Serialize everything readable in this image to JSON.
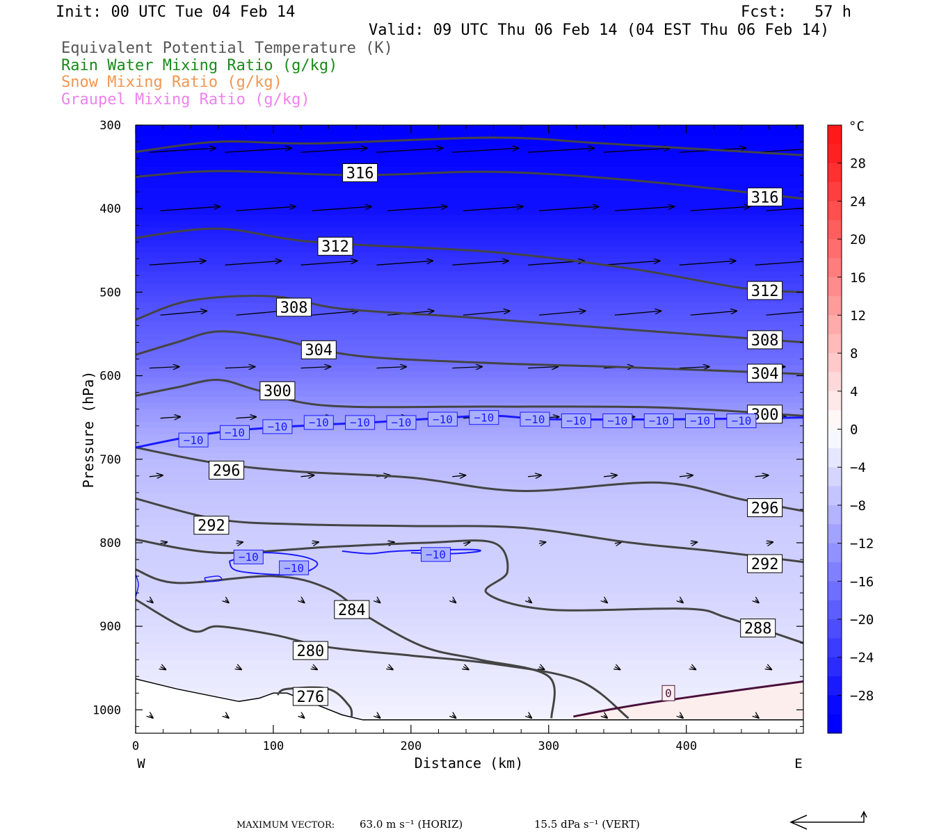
{
  "header": {
    "init": "Init: 00 UTC Tue 04 Feb 14",
    "fcst": "Fcst:   57 h",
    "valid": "Valid: 09 UTC Thu 06 Feb 14 (04 EST Thu 06 Feb 14)"
  },
  "legend": [
    {
      "label": "Equivalent Potential Temperature (K)",
      "color": "#555555"
    },
    {
      "label": "Rain Water Mixing Ratio (g/kg)",
      "color": "#1a8a1a"
    },
    {
      "label": "Snow Mixing Ratio (g/kg)",
      "color": "#f39650"
    },
    {
      "label": "Graupel Mixing Ratio (g/kg)",
      "color": "#ee82ee"
    }
  ],
  "footer": {
    "max_vector_label": "MAXIMUM VECTOR:",
    "horiz": "63.0 m s⁻¹ (HORIZ)",
    "vert": "15.5 dPa s⁻¹ (VERT)"
  },
  "chart_data": {
    "type": "heatmap",
    "xlabel": "Distance (km)",
    "ylabel": "Pressure (hPa)",
    "x_ticks": [
      0,
      100,
      200,
      300,
      400
    ],
    "xlim": [
      0,
      485
    ],
    "y_ticks": [
      300,
      400,
      500,
      600,
      700,
      800,
      900,
      1000
    ],
    "ylim": [
      1028,
      300
    ],
    "x_end_labels": {
      "left": "W",
      "right": "E"
    },
    "colorbar": {
      "unit": "°C",
      "tick_labels": [
        "28",
        "24",
        "20",
        "16",
        "12",
        "8",
        "4",
        "0",
        "−4",
        "−8",
        "−12",
        "−16",
        "−20",
        "−24",
        "−28"
      ],
      "tick_values": [
        28,
        24,
        20,
        16,
        12,
        8,
        4,
        0,
        -4,
        -8,
        -12,
        -16,
        -20,
        -24,
        -28
      ],
      "range": [
        -32,
        32
      ],
      "step": 2
    },
    "theta_e": [
      {
        "value": 316,
        "points": [
          [
            0,
            332
          ],
          [
            60,
            320
          ],
          [
            130,
            322
          ],
          [
            260,
            315
          ],
          [
            340,
            322
          ],
          [
            485,
            336
          ]
        ]
      },
      {
        "value": 316,
        "points": [
          [
            0,
            362
          ],
          [
            60,
            355
          ],
          [
            160,
            360
          ],
          [
            260,
            356
          ],
          [
            360,
            366
          ],
          [
            485,
            388
          ]
        ]
      },
      {
        "value": 312,
        "points": [
          [
            0,
            435
          ],
          [
            60,
            424
          ],
          [
            130,
            440
          ],
          [
            260,
            452
          ],
          [
            360,
            472
          ],
          [
            440,
            495
          ],
          [
            485,
            500
          ]
        ]
      },
      {
        "value": 308,
        "points": [
          [
            0,
            533
          ],
          [
            40,
            510
          ],
          [
            100,
            505
          ],
          [
            150,
            520
          ],
          [
            240,
            530
          ],
          [
            360,
            545
          ],
          [
            485,
            560
          ]
        ]
      },
      {
        "value": 304,
        "points": [
          [
            0,
            575
          ],
          [
            30,
            560
          ],
          [
            60,
            547
          ],
          [
            100,
            555
          ],
          [
            160,
            576
          ],
          [
            260,
            585
          ],
          [
            360,
            590
          ],
          [
            485,
            598
          ]
        ]
      },
      {
        "value": 300,
        "points": [
          [
            0,
            624
          ],
          [
            30,
            614
          ],
          [
            60,
            605
          ],
          [
            90,
            618
          ],
          [
            140,
            636
          ],
          [
            260,
            637
          ],
          [
            380,
            638
          ],
          [
            485,
            648
          ]
        ]
      },
      {
        "value": 296,
        "points": [
          [
            0,
            686
          ],
          [
            60,
            705
          ],
          [
            120,
            715
          ],
          [
            200,
            722
          ],
          [
            280,
            738
          ],
          [
            380,
            728
          ],
          [
            440,
            748
          ],
          [
            485,
            762
          ]
        ]
      },
      {
        "value": 292,
        "points": [
          [
            0,
            747
          ],
          [
            60,
            772
          ],
          [
            120,
            778
          ],
          [
            200,
            780
          ],
          [
            280,
            782
          ],
          [
            360,
            800
          ],
          [
            420,
            810
          ],
          [
            485,
            823
          ]
        ]
      },
      {
        "value": 288,
        "points": [
          [
            0,
            796
          ],
          [
            60,
            812
          ],
          [
            140,
            805
          ],
          [
            210,
            800
          ],
          [
            260,
            800
          ],
          [
            270,
            835
          ],
          [
            255,
            860
          ],
          [
            300,
            880
          ],
          [
            400,
            879
          ],
          [
            430,
            890
          ],
          [
            485,
            920
          ]
        ]
      },
      {
        "value": 284,
        "points": [
          [
            0,
            832
          ],
          [
            30,
            848
          ],
          [
            100,
            840
          ],
          [
            140,
            855
          ],
          [
            170,
            890
          ],
          [
            210,
            925
          ],
          [
            250,
            940
          ],
          [
            300,
            960
          ],
          [
            302,
            1010
          ]
        ]
      },
      {
        "value": 280,
        "points": [
          [
            0,
            868
          ],
          [
            40,
            905
          ],
          [
            60,
            900
          ],
          [
            100,
            910
          ],
          [
            140,
            925
          ],
          [
            200,
            935
          ],
          [
            260,
            945
          ],
          [
            322,
            965
          ],
          [
            358,
            1010
          ]
        ]
      },
      {
        "value": 276,
        "points": [
          [
            103,
            982
          ],
          [
            110,
            975
          ],
          [
            140,
            975
          ],
          [
            155,
            995
          ],
          [
            157,
            1008
          ]
        ]
      }
    ],
    "isotherm_minus10": [
      [
        0,
        686
      ],
      [
        50,
        670
      ],
      [
        100,
        662
      ],
      [
        180,
        655
      ],
      [
        255,
        648
      ],
      [
        300,
        652
      ],
      [
        400,
        652
      ],
      [
        485,
        650
      ]
    ],
    "isotherm_zero": [
      [
        318,
        1008
      ],
      [
        350,
        998
      ],
      [
        380,
        990
      ],
      [
        440,
        976
      ],
      [
        485,
        966
      ]
    ],
    "theta_e_labels": [
      {
        "text": "316",
        "x": 163,
        "p": 357
      },
      {
        "text": "316",
        "x": 457,
        "p": 386
      },
      {
        "text": "312",
        "x": 145,
        "p": 445
      },
      {
        "text": "312",
        "x": 457,
        "p": 498
      },
      {
        "text": "308",
        "x": 115,
        "p": 518
      },
      {
        "text": "308",
        "x": 457,
        "p": 557
      },
      {
        "text": "304",
        "x": 133,
        "p": 569
      },
      {
        "text": "304",
        "x": 457,
        "p": 597
      },
      {
        "text": "300",
        "x": 103,
        "p": 618
      },
      {
        "text": "300",
        "x": 457,
        "p": 646
      },
      {
        "text": "296",
        "x": 66,
        "p": 713
      },
      {
        "text": "296",
        "x": 457,
        "p": 758
      },
      {
        "text": "292",
        "x": 55,
        "p": 779
      },
      {
        "text": "292",
        "x": 457,
        "p": 825
      },
      {
        "text": "288",
        "x": 452,
        "p": 902
      },
      {
        "text": "284",
        "x": 157,
        "p": 880
      },
      {
        "text": "280",
        "x": 127,
        "p": 929
      },
      {
        "text": "276",
        "x": 127,
        "p": 984
      }
    ],
    "minus10_labels": [
      {
        "text": "−10",
        "x": 42,
        "p": 677
      },
      {
        "text": "−10",
        "x": 72,
        "p": 668
      },
      {
        "text": "−10",
        "x": 103,
        "p": 661
      },
      {
        "text": "−10",
        "x": 133,
        "p": 656
      },
      {
        "text": "−10",
        "x": 163,
        "p": 656
      },
      {
        "text": "−10",
        "x": 193,
        "p": 656
      },
      {
        "text": "−10",
        "x": 223,
        "p": 652
      },
      {
        "text": "−10",
        "x": 253,
        "p": 650
      },
      {
        "text": "−10",
        "x": 290,
        "p": 652
      },
      {
        "text": "−10",
        "x": 320,
        "p": 654
      },
      {
        "text": "−10",
        "x": 350,
        "p": 654
      },
      {
        "text": "−10",
        "x": 380,
        "p": 654
      },
      {
        "text": "−10",
        "x": 410,
        "p": 654
      },
      {
        "text": "−10",
        "x": 440,
        "p": 654
      },
      {
        "text": "−10",
        "x": 82,
        "p": 817
      },
      {
        "text": "−10",
        "x": 115,
        "p": 830
      },
      {
        "text": "−10",
        "x": 218,
        "p": 814
      }
    ],
    "zero_label": {
      "text": "0",
      "x": 387,
      "p": 980
    },
    "temperature_bands": [
      {
        "p": 300,
        "t": -30
      },
      {
        "p": 400,
        "t": -28
      },
      {
        "p": 460,
        "t": -24
      },
      {
        "p": 520,
        "t": -20
      },
      {
        "p": 580,
        "t": -17
      },
      {
        "p": 640,
        "t": -12
      },
      {
        "p": 700,
        "t": -8
      },
      {
        "p": 780,
        "t": -6
      },
      {
        "p": 860,
        "t": -5
      },
      {
        "p": 940,
        "t": -3
      },
      {
        "p": 1028,
        "t": -1
      }
    ],
    "wind_rows": [
      {
        "p": 330,
        "len": 1.0
      },
      {
        "p": 400,
        "len": 0.9
      },
      {
        "p": 465,
        "len": 0.85
      },
      {
        "p": 525,
        "len": 0.7
      },
      {
        "p": 590,
        "len": 0.45
      },
      {
        "p": 650,
        "len": 0.3
      },
      {
        "p": 720,
        "len": 0.2
      },
      {
        "p": 800,
        "len": 0.1
      },
      {
        "p": 870,
        "len": 0.05
      },
      {
        "p": 950,
        "len": 0.08
      },
      {
        "p": 1008,
        "len": 0.05
      }
    ]
  }
}
